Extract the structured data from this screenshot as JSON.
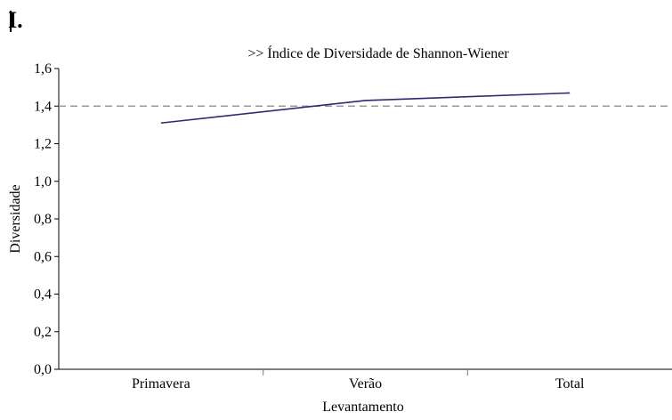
{
  "panel_label": "I.",
  "chart_data": {
    "type": "line",
    "title": ">> Índice de Diversidade de Shannon-Wiener",
    "xlabel": "Levantamento",
    "ylabel": "Diversidade",
    "categories": [
      "Primavera",
      "Verão",
      "Total"
    ],
    "series": [
      {
        "values": [
          1.31,
          1.43,
          1.47
        ],
        "color": "#2b2b6e"
      }
    ],
    "reference_line": {
      "value": 1.4,
      "style": "dashed",
      "color": "#9a9a9a"
    },
    "ylim": [
      0,
      1.6
    ],
    "yticks": [
      "0,0",
      "0,2",
      "0,4",
      "0,6",
      "0,8",
      "1,0",
      "1,2",
      "1,4",
      "1,6"
    ],
    "grid": false,
    "legend": "none"
  }
}
